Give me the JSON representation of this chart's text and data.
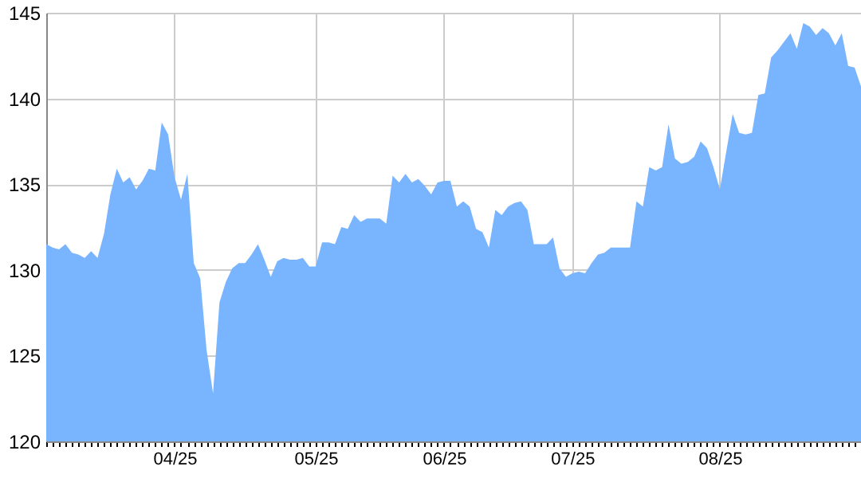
{
  "chart_data": {
    "type": "area",
    "categories": [
      null,
      null,
      null,
      null,
      null,
      null,
      null,
      null,
      null,
      null,
      null,
      null,
      null,
      null,
      null,
      null,
      null,
      null,
      null,
      null,
      "04/25",
      null,
      null,
      null,
      null,
      null,
      null,
      null,
      null,
      null,
      null,
      null,
      null,
      null,
      null,
      null,
      null,
      null,
      null,
      null,
      null,
      null,
      "05/25",
      null,
      null,
      null,
      null,
      null,
      null,
      null,
      null,
      null,
      null,
      null,
      null,
      null,
      null,
      null,
      null,
      null,
      null,
      null,
      "06/25",
      null,
      null,
      null,
      null,
      null,
      null,
      null,
      null,
      null,
      null,
      null,
      null,
      null,
      null,
      null,
      null,
      null,
      null,
      null,
      "07/25",
      null,
      null,
      null,
      null,
      null,
      null,
      null,
      null,
      null,
      null,
      null,
      null,
      null,
      null,
      null,
      null,
      null,
      null,
      null,
      null,
      null,
      null,
      "08/25",
      null,
      null,
      null,
      null,
      null,
      null,
      null,
      null,
      null,
      null,
      null,
      null,
      null,
      null,
      null,
      null,
      null,
      null,
      null,
      null,
      null,
      null
    ],
    "series": [
      {
        "color": "#79b4ff",
        "values": [
          131.5,
          131.3,
          131.2,
          131.5,
          131.0,
          130.9,
          130.7,
          131.1,
          130.7,
          132.1,
          134.4,
          135.9,
          135.1,
          135.4,
          134.7,
          135.2,
          135.9,
          135.8,
          138.6,
          137.9,
          135.4,
          134.1,
          135.6,
          130.4,
          129.5,
          125.3,
          122.8,
          128.1,
          129.3,
          130.1,
          130.4,
          130.4,
          130.9,
          131.5,
          130.6,
          129.6,
          130.5,
          130.7,
          130.6,
          130.6,
          130.7,
          130.2,
          130.2,
          131.6,
          131.6,
          131.5,
          132.5,
          132.4,
          133.2,
          132.8,
          133.0,
          133.0,
          133.0,
          132.7,
          135.5,
          135.1,
          135.6,
          135.1,
          135.3,
          134.9,
          134.4,
          135.1,
          135.2,
          135.2,
          133.7,
          134.0,
          133.7,
          132.4,
          132.2,
          131.3,
          133.5,
          133.2,
          133.7,
          133.9,
          134.0,
          133.5,
          131.5,
          131.5,
          131.5,
          131.9,
          130.1,
          129.6,
          129.8,
          129.9,
          129.8,
          130.4,
          130.9,
          131.0,
          131.3,
          131.3,
          131.3,
          131.3,
          134.0,
          133.7,
          136.0,
          135.8,
          136.0,
          138.5,
          136.5,
          136.2,
          136.3,
          136.6,
          137.5,
          137.1,
          136.0,
          134.7,
          136.9,
          139.1,
          138.0,
          137.9,
          138.0,
          140.2,
          140.3,
          142.4,
          142.8,
          143.3,
          143.8,
          142.9,
          144.4,
          144.2,
          143.7,
          144.1,
          143.8,
          143.1,
          143.8,
          141.9,
          141.8,
          140.7
        ]
      }
    ],
    "ylim": [
      120,
      145
    ],
    "yticks": [
      120,
      125,
      130,
      135,
      140,
      145
    ],
    "grid": true
  }
}
